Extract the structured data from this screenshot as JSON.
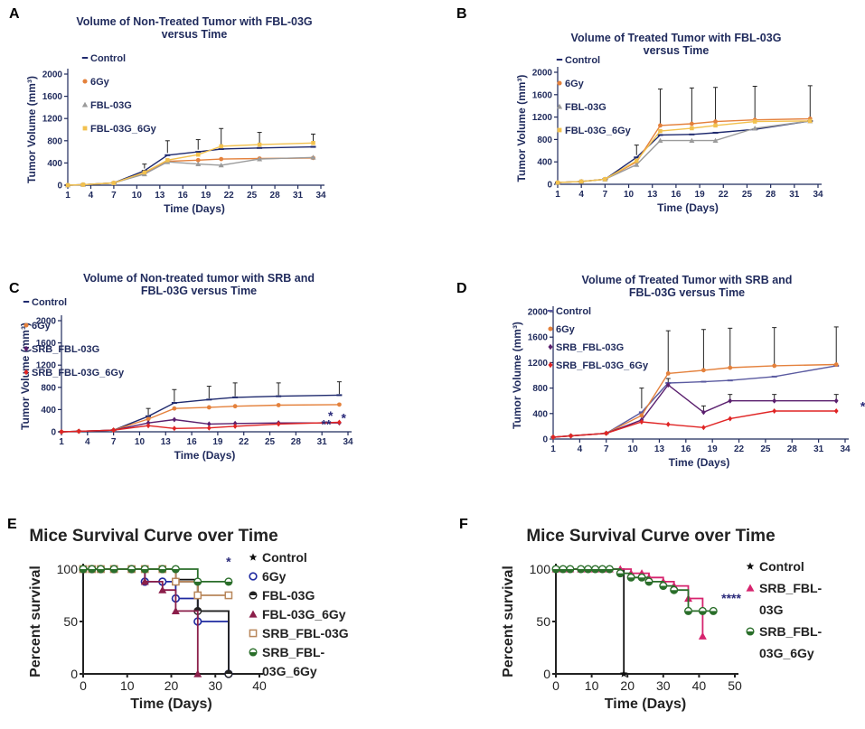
{
  "panels": [
    {
      "letter": "A",
      "style": "small",
      "type": "line",
      "title": [
        "Volume of Non-Treated Tumor with FBL-03G",
        "versus Time"
      ],
      "xlabel": "Time (Days)",
      "ylabel": "Tumor Volume (mm³)",
      "xticks": [
        "1",
        "4",
        "7",
        "10",
        "13",
        "16",
        "19",
        "22",
        "25",
        "28",
        "31",
        "34"
      ],
      "ylim": [
        0,
        2000
      ],
      "yticks": [
        "0",
        "400",
        "800",
        "1200",
        "1600",
        "2000"
      ],
      "series": [
        {
          "name": "Control",
          "color": "#1f2a6e",
          "marker": "dash",
          "x": [
            1,
            3,
            7,
            11,
            14,
            18,
            21,
            26,
            33
          ],
          "y": [
            0,
            10,
            40,
            260,
            540,
            600,
            650,
            670,
            690
          ]
        },
        {
          "name": "6Gy",
          "color": "#e4813c",
          "marker": "circle",
          "x": [
            1,
            3,
            7,
            11,
            14,
            18,
            21,
            26,
            33
          ],
          "y": [
            0,
            10,
            40,
            210,
            430,
            450,
            470,
            480,
            490
          ]
        },
        {
          "name": "FBL-03G",
          "color": "#9b9b9b",
          "marker": "tri",
          "x": [
            1,
            3,
            7,
            11,
            14,
            18,
            21,
            26,
            33
          ],
          "y": [
            0,
            10,
            40,
            200,
            420,
            380,
            360,
            470,
            500
          ]
        },
        {
          "name": "FBL-03G_6Gy",
          "color": "#f2c14e",
          "marker": "square",
          "x": [
            1,
            3,
            7,
            11,
            14,
            18,
            21,
            26,
            33
          ],
          "y": [
            0,
            10,
            40,
            230,
            450,
            550,
            700,
            730,
            760
          ]
        }
      ],
      "errorbars": {
        "x": [
          11,
          14,
          18,
          21,
          26,
          33
        ],
        "y": [
          300,
          580,
          640,
          720,
          740,
          760
        ],
        "top": [
          380,
          800,
          820,
          1020,
          950,
          920
        ]
      }
    },
    {
      "letter": "B",
      "style": "small",
      "type": "line",
      "title": [
        "Volume of Treated Tumor with FBL-03G",
        "versus Time"
      ],
      "xlabel": "Time (Days)",
      "ylabel": "Tumor Volume (mm³)",
      "xticks": [
        "1",
        "4",
        "7",
        "10",
        "13",
        "16",
        "19",
        "22",
        "25",
        "28",
        "31",
        "34"
      ],
      "ylim": [
        0,
        2000
      ],
      "yticks": [
        "0",
        "400",
        "800",
        "1200",
        "1600",
        "2000"
      ],
      "series": [
        {
          "name": "Control",
          "color": "#1f2a6e",
          "marker": "dash",
          "x": [
            1,
            4,
            7,
            11,
            14,
            18,
            21,
            26,
            33
          ],
          "y": [
            30,
            50,
            90,
            480,
            880,
            890,
            920,
            980,
            1130
          ]
        },
        {
          "name": "6Gy",
          "color": "#e4813c",
          "marker": "circle",
          "x": [
            1,
            4,
            7,
            11,
            14,
            18,
            21,
            26,
            33
          ],
          "y": [
            30,
            50,
            90,
            400,
            1050,
            1080,
            1120,
            1150,
            1170
          ]
        },
        {
          "name": "FBL-03G",
          "color": "#9b9b9b",
          "marker": "tri",
          "x": [
            1,
            4,
            7,
            11,
            14,
            18,
            21,
            26,
            33
          ],
          "y": [
            30,
            50,
            90,
            350,
            780,
            780,
            780,
            1000,
            1130
          ]
        },
        {
          "name": "FBL-03G_6Gy",
          "color": "#f2c14e",
          "marker": "square",
          "x": [
            1,
            4,
            7,
            11,
            14,
            18,
            21,
            26,
            33
          ],
          "y": [
            30,
            50,
            90,
            420,
            950,
            1000,
            1050,
            1120,
            1130
          ]
        }
      ],
      "errorbars": {
        "x": [
          11,
          14,
          18,
          21,
          26,
          33
        ],
        "y": [
          520,
          1050,
          1080,
          1120,
          1150,
          1170
        ],
        "top": [
          700,
          1700,
          1720,
          1730,
          1750,
          1760
        ]
      }
    },
    {
      "letter": "C",
      "style": "small",
      "type": "line",
      "title": [
        "Volume of Non-treated tumor with  SRB and",
        "FBL-03G versus Time"
      ],
      "xlabel": "Time (Days)",
      "ylabel": "Tumor Volume (mm³)",
      "xticks": [
        "1",
        "4",
        "7",
        "10",
        "13",
        "16",
        "19",
        "22",
        "25",
        "28",
        "31",
        "34"
      ],
      "ylim": [
        0,
        2000
      ],
      "yticks": [
        "0",
        "400",
        "800",
        "1200",
        "1600",
        "2000"
      ],
      "series": [
        {
          "name": "Control",
          "color": "#1f2a6e",
          "marker": "dash",
          "x": [
            1,
            3,
            7,
            11,
            14,
            18,
            21,
            26,
            33
          ],
          "y": [
            0,
            10,
            30,
            280,
            520,
            580,
            620,
            640,
            660
          ]
        },
        {
          "name": "6Gy",
          "color": "#e4813c",
          "marker": "circle",
          "x": [
            1,
            3,
            7,
            11,
            14,
            18,
            21,
            26,
            33
          ],
          "y": [
            0,
            10,
            30,
            230,
            420,
            440,
            460,
            480,
            490
          ]
        },
        {
          "name": "SRB_FBL-03G",
          "color": "#5a1f6e",
          "marker": "diamond",
          "x": [
            1,
            3,
            7,
            11,
            14,
            18,
            21,
            26,
            33
          ],
          "y": [
            0,
            10,
            30,
            160,
            220,
            140,
            150,
            160,
            160
          ]
        },
        {
          "name": "SRB_FBL-03G_6Gy",
          "color": "#e02424",
          "marker": "diamond",
          "x": [
            1,
            3,
            7,
            11,
            14,
            18,
            21,
            26,
            33
          ],
          "y": [
            0,
            10,
            30,
            110,
            60,
            70,
            100,
            140,
            170
          ]
        }
      ],
      "errorbars": {
        "x": [
          11,
          14,
          18,
          21,
          26,
          33
        ],
        "y": [
          300,
          540,
          600,
          640,
          660,
          680
        ],
        "top": [
          420,
          760,
          820,
          880,
          880,
          900
        ]
      },
      "annotations": [
        {
          "text": "*",
          "x": 32,
          "y": 210
        },
        {
          "text": "**",
          "x": 31.5,
          "y": 60
        },
        {
          "text": "*",
          "x": 33.5,
          "y": 170
        }
      ]
    },
    {
      "letter": "D",
      "style": "small",
      "type": "line",
      "title": [
        "Volume of Treated Tumor with SRB and",
        "FBL-03G versus Time"
      ],
      "xlabel": "Time (Days)",
      "ylabel": "Tumor Volume (mm³)",
      "xticks": [
        "1",
        "4",
        "7",
        "10",
        "13",
        "16",
        "19",
        "22",
        "25",
        "28",
        "31",
        "34"
      ],
      "ylim": [
        0,
        2000
      ],
      "yticks": [
        "0",
        "400",
        "800",
        "1200",
        "1600",
        "2000"
      ],
      "series": [
        {
          "name": "Control",
          "color": "#5a5aa0",
          "marker": "dash",
          "x": [
            1,
            3,
            7,
            11,
            14,
            18,
            21,
            26,
            33
          ],
          "y": [
            30,
            50,
            90,
            420,
            880,
            900,
            920,
            980,
            1150
          ]
        },
        {
          "name": "6Gy",
          "color": "#e4813c",
          "marker": "circle",
          "x": [
            1,
            3,
            7,
            11,
            14,
            18,
            21,
            26,
            33
          ],
          "y": [
            30,
            50,
            90,
            370,
            1030,
            1080,
            1120,
            1150,
            1170
          ]
        },
        {
          "name": "SRB_FBL-03G",
          "color": "#5a1f6e",
          "marker": "diamond",
          "x": [
            1,
            3,
            7,
            11,
            14,
            18,
            21,
            26,
            33
          ],
          "y": [
            30,
            50,
            90,
            300,
            850,
            420,
            600,
            600,
            600
          ]
        },
        {
          "name": "SRB_FBL-03G_6Gy",
          "color": "#e02424",
          "marker": "diamond",
          "x": [
            1,
            3,
            7,
            11,
            14,
            18,
            21,
            26,
            33
          ],
          "y": [
            30,
            50,
            90,
            270,
            230,
            180,
            320,
            440,
            440
          ]
        }
      ],
      "errorbars": {
        "x": [
          11,
          14,
          18,
          21,
          26,
          33
        ],
        "y": [
          480,
          1050,
          1100,
          1140,
          1160,
          1180
        ],
        "top": [
          800,
          1700,
          1720,
          1740,
          1750,
          1760
        ]
      },
      "errorbars2": {
        "x": [
          14,
          18,
          21,
          26,
          33
        ],
        "y": [
          850,
          420,
          600,
          600,
          600
        ],
        "top": [
          950,
          520,
          700,
          700,
          700
        ]
      },
      "annotations": [
        {
          "text": "*",
          "x": 36,
          "y": 450
        }
      ]
    },
    {
      "letter": "E",
      "style": "large",
      "type": "step",
      "title": [
        "Mice Survival Curve over Time"
      ],
      "xlabel": "Time (Days)",
      "ylabel": "Percent survival",
      "xlim": [
        0,
        40
      ],
      "ylim": [
        0,
        100
      ],
      "xticks": [
        "0",
        "10",
        "20",
        "30",
        "40"
      ],
      "yticks": [
        "0",
        "50",
        "100"
      ],
      "series": [
        {
          "name": "Control",
          "color": "#111111",
          "marker": "star",
          "x": [
            0,
            2,
            4,
            7,
            11,
            14,
            18,
            21,
            26,
            33
          ],
          "y": [
            100,
            100,
            100,
            100,
            100,
            100,
            100,
            90,
            60,
            0
          ]
        },
        {
          "name": "6Gy",
          "color": "#1f2aa0",
          "marker": "circleopen",
          "x": [
            0,
            2,
            4,
            7,
            11,
            14,
            18,
            21,
            26,
            33
          ],
          "y": [
            100,
            100,
            100,
            100,
            100,
            88,
            88,
            72,
            50,
            0
          ]
        },
        {
          "name": "FBL-03G",
          "color": "#222222",
          "marker": "halfcircle",
          "x": [
            0,
            2,
            4,
            7,
            11,
            14,
            18,
            21,
            26,
            33
          ],
          "y": [
            100,
            100,
            100,
            100,
            100,
            100,
            100,
            88,
            60,
            0
          ]
        },
        {
          "name": "FBL-03G_6Gy",
          "color": "#8b1f4a",
          "marker": "tri",
          "x": [
            0,
            2,
            4,
            7,
            11,
            14,
            18,
            21,
            26
          ],
          "y": [
            100,
            100,
            100,
            100,
            100,
            88,
            80,
            60,
            0
          ]
        },
        {
          "name": "SRB_FBL-03G",
          "color": "#b8865a",
          "marker": "squareopen",
          "x": [
            0,
            2,
            4,
            7,
            11,
            14,
            18,
            21,
            26,
            33
          ],
          "y": [
            100,
            100,
            100,
            100,
            100,
            100,
            100,
            88,
            75,
            75
          ]
        },
        {
          "name": "SRB_FBL-03G_6Gy",
          "color": "#2a6e2a",
          "marker": "halfgreen",
          "x": [
            0,
            2,
            4,
            7,
            11,
            14,
            18,
            21,
            26,
            33
          ],
          "y": [
            100,
            100,
            100,
            100,
            100,
            100,
            100,
            100,
            88,
            88
          ]
        }
      ],
      "legend_display": [
        "Control",
        "6Gy",
        "FBL-03G",
        "FBL-03G_6Gy",
        "SRB_FBL-03G",
        "SRB_FBL-",
        "03G_6Gy"
      ],
      "annotations": [
        {
          "text": "*",
          "x": 33,
          "y": 103
        }
      ]
    },
    {
      "letter": "F",
      "style": "large",
      "type": "step",
      "title": [
        "Mice Survival Curve over Time"
      ],
      "xlabel": "Time (Days)",
      "ylabel": "Percent survival",
      "xlim": [
        0,
        50
      ],
      "ylim": [
        0,
        100
      ],
      "xticks": [
        "0",
        "10",
        "20",
        "30",
        "40",
        "50"
      ],
      "yticks": [
        "0",
        "50",
        "100"
      ],
      "series": [
        {
          "name": "Control",
          "color": "#111111",
          "marker": "star",
          "x": [
            0,
            2,
            4,
            7,
            9,
            11,
            13,
            15,
            19
          ],
          "y": [
            100,
            100,
            100,
            100,
            100,
            100,
            100,
            100,
            0
          ]
        },
        {
          "name": "SRB_FBL-03G",
          "color": "#d6246e",
          "marker": "tri",
          "x": [
            0,
            2,
            4,
            7,
            9,
            11,
            13,
            15,
            18,
            21,
            24,
            26,
            30,
            33,
            37,
            41
          ],
          "y": [
            100,
            100,
            100,
            100,
            100,
            100,
            100,
            100,
            100,
            96,
            96,
            92,
            88,
            84,
            72,
            36
          ]
        },
        {
          "name": "SRB_FBL-03G_6Gy",
          "color": "#2a6e2a",
          "marker": "halfgreen",
          "x": [
            0,
            2,
            4,
            7,
            9,
            11,
            13,
            15,
            18,
            21,
            24,
            26,
            30,
            33,
            37,
            41,
            44
          ],
          "y": [
            100,
            100,
            100,
            100,
            100,
            100,
            100,
            100,
            96,
            92,
            92,
            88,
            84,
            80,
            60,
            60,
            60
          ]
        }
      ],
      "legend_display": [
        "Control",
        "SRB_FBL-",
        "03G",
        "SRB_FBL-",
        "03G_6Gy"
      ],
      "annotations": [
        {
          "text": "****",
          "x": 49,
          "y": 68
        }
      ]
    }
  ]
}
